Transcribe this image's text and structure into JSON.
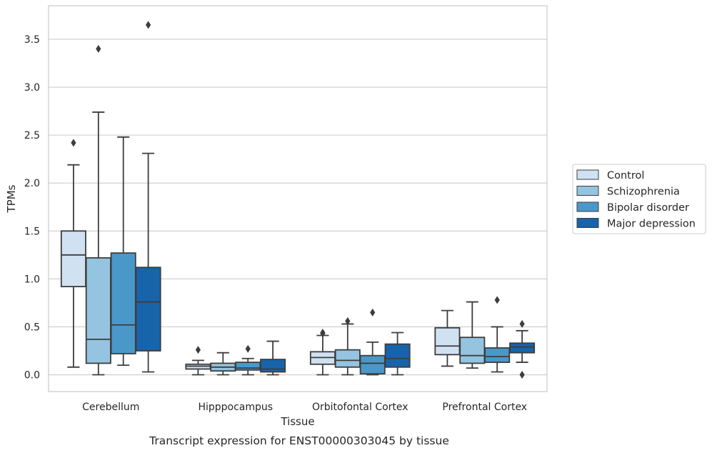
{
  "chart_data": {
    "type": "boxplot",
    "xlabel": "Tissue",
    "ylabel": "TPMs",
    "caption": "Transcript expression for ENST00000303045 by tissue",
    "ylim": [
      -0.175,
      3.85
    ],
    "yticks": [
      0.0,
      0.5,
      1.0,
      1.5,
      2.0,
      2.5,
      3.0,
      3.5
    ],
    "ytick_labels": [
      "0.0",
      "0.5",
      "1.0",
      "1.5",
      "2.0",
      "2.5",
      "3.0",
      "3.5"
    ],
    "grid": "horizontal",
    "legend_position": "right",
    "categories": [
      "Cerebellum",
      "Hipppocampus",
      "Orbitofontal Cortex",
      "Prefrontal Cortex"
    ],
    "series": [
      {
        "name": "Control",
        "color": "#d0e1f2",
        "boxes": [
          {
            "whisker_low": 0.08,
            "q1": 0.92,
            "median": 1.25,
            "q3": 1.5,
            "whisker_high": 2.19,
            "outliers": [
              2.42
            ]
          },
          {
            "whisker_low": 0.0,
            "q1": 0.06,
            "median": 0.09,
            "q3": 0.11,
            "whisker_high": 0.15,
            "outliers": [
              0.26
            ]
          },
          {
            "whisker_low": 0.0,
            "q1": 0.11,
            "median": 0.18,
            "q3": 0.24,
            "whisker_high": 0.41,
            "outliers": [
              0.44,
              0.43
            ]
          },
          {
            "whisker_low": 0.09,
            "q1": 0.21,
            "median": 0.3,
            "q3": 0.49,
            "whisker_high": 0.67,
            "outliers": []
          }
        ]
      },
      {
        "name": "Schizophrenia",
        "color": "#94c4df",
        "boxes": [
          {
            "whisker_low": 0.0,
            "q1": 0.12,
            "median": 0.37,
            "q3": 1.22,
            "whisker_high": 2.74,
            "outliers": [
              3.4
            ]
          },
          {
            "whisker_low": 0.0,
            "q1": 0.04,
            "median": 0.08,
            "q3": 0.12,
            "whisker_high": 0.23,
            "outliers": []
          },
          {
            "whisker_low": 0.0,
            "q1": 0.08,
            "median": 0.15,
            "q3": 0.26,
            "whisker_high": 0.53,
            "outliers": [
              0.56
            ]
          },
          {
            "whisker_low": 0.07,
            "q1": 0.12,
            "median": 0.2,
            "q3": 0.39,
            "whisker_high": 0.76,
            "outliers": []
          }
        ]
      },
      {
        "name": "Bipolar disorder",
        "color": "#4a98c9",
        "boxes": [
          {
            "whisker_low": 0.1,
            "q1": 0.22,
            "median": 0.52,
            "q3": 1.27,
            "whisker_high": 2.48,
            "outliers": []
          },
          {
            "whisker_low": 0.0,
            "q1": 0.05,
            "median": 0.07,
            "q3": 0.13,
            "whisker_high": 0.17,
            "outliers": [
              0.27
            ]
          },
          {
            "whisker_low": 0.0,
            "q1": 0.01,
            "median": 0.12,
            "q3": 0.2,
            "whisker_high": 0.34,
            "outliers": [
              0.65
            ]
          },
          {
            "whisker_low": 0.03,
            "q1": 0.13,
            "median": 0.19,
            "q3": 0.28,
            "whisker_high": 0.5,
            "outliers": [
              0.78
            ]
          }
        ]
      },
      {
        "name": "Major depression",
        "color": "#1764ab",
        "boxes": [
          {
            "whisker_low": 0.03,
            "q1": 0.25,
            "median": 0.76,
            "q3": 1.12,
            "whisker_high": 2.31,
            "outliers": [
              3.65
            ]
          },
          {
            "whisker_low": 0.0,
            "q1": 0.03,
            "median": 0.06,
            "q3": 0.16,
            "whisker_high": 0.35,
            "outliers": []
          },
          {
            "whisker_low": 0.0,
            "q1": 0.08,
            "median": 0.17,
            "q3": 0.32,
            "whisker_high": 0.44,
            "outliers": []
          },
          {
            "whisker_low": 0.13,
            "q1": 0.23,
            "median": 0.29,
            "q3": 0.33,
            "whisker_high": 0.46,
            "outliers": [
              0.53,
              0.0
            ]
          }
        ]
      }
    ]
  }
}
